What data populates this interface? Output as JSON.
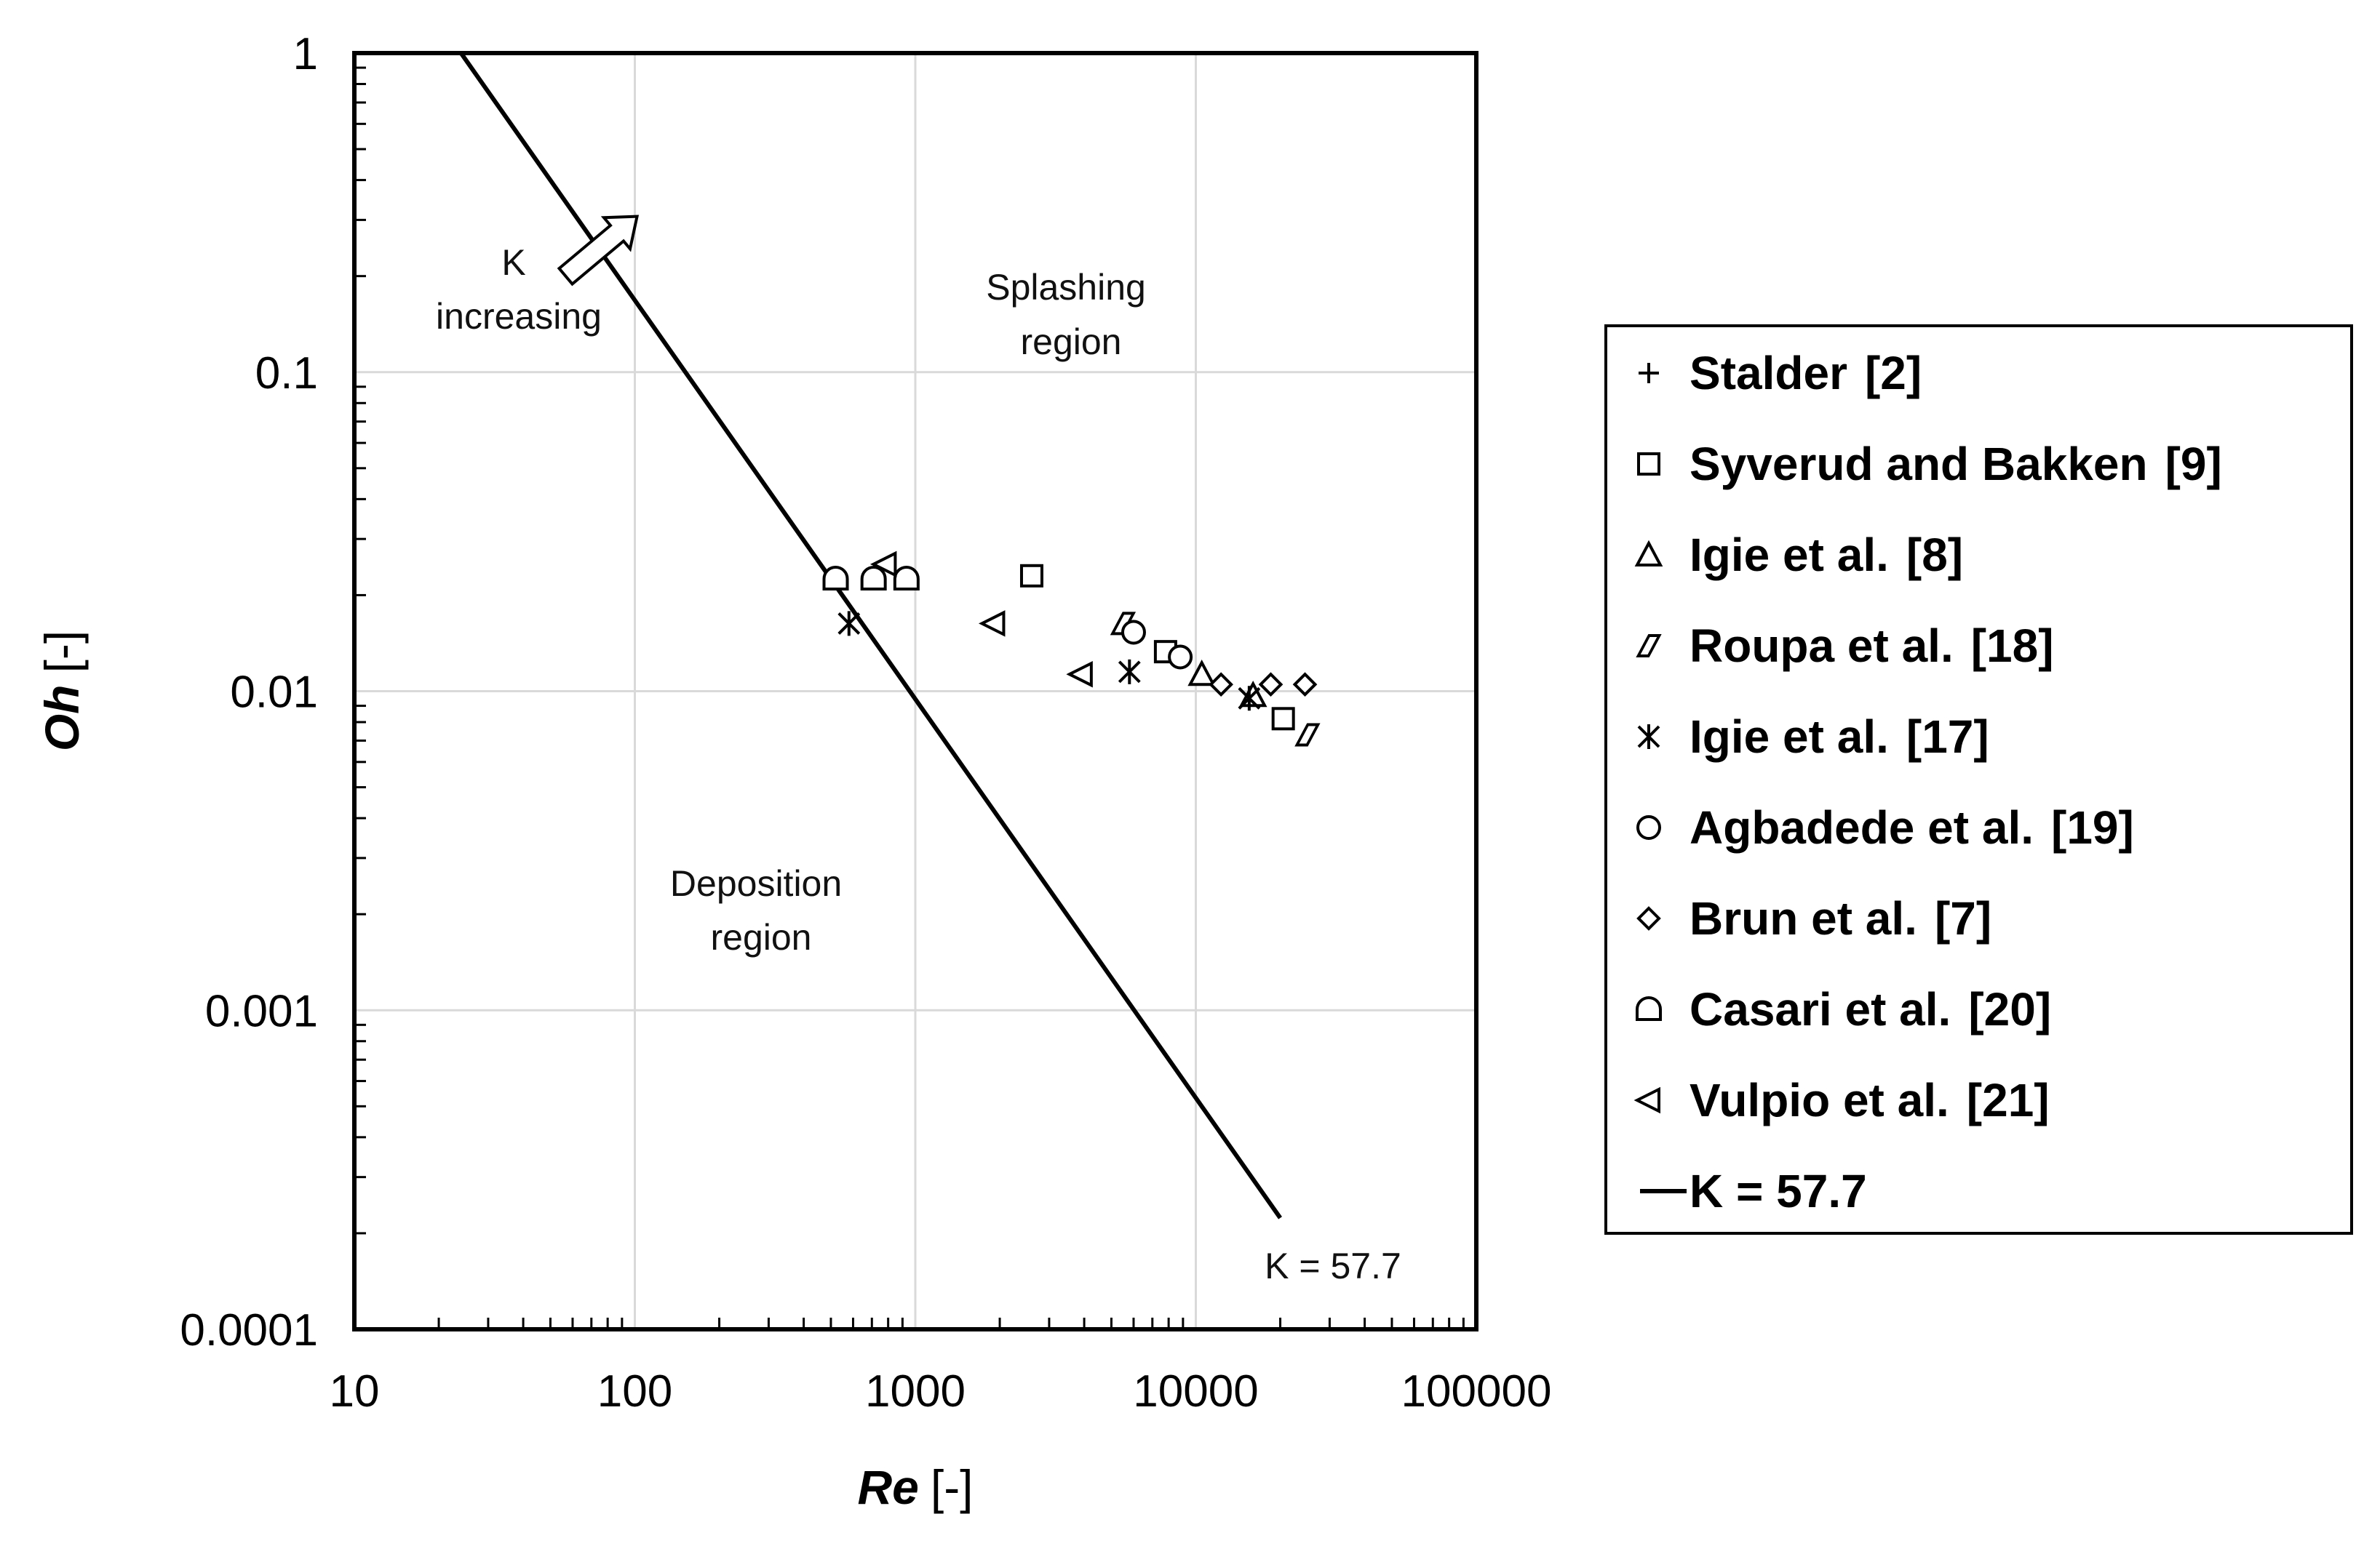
{
  "chart_data": {
    "type": "scatter",
    "title": "",
    "xlabel": {
      "symbol": "Re",
      "unit": "[-]"
    },
    "ylabel": {
      "symbol": "Oh",
      "unit": "[-]"
    },
    "x_scale": "log",
    "y_scale": "log",
    "xlim": [
      10,
      100000
    ],
    "ylim": [
      0.0001,
      1
    ],
    "x_ticks": [
      "10",
      "100",
      "1000",
      "10000",
      "100000"
    ],
    "y_ticks": [
      "0.0001",
      "0.001",
      "0.01",
      "0.1",
      "1"
    ],
    "grid": true,
    "legend_position": "right",
    "annotations": {
      "k_increasing_line1": "K",
      "k_increasing_line2": "increasing",
      "splashing_line1": "Splashing",
      "splashing_line2": "region",
      "deposition_line1": "Deposition",
      "deposition_line2": "region",
      "threshold_label": "K = 57.7"
    },
    "threshold_line": {
      "name": "K = 57.7",
      "K": 57.7,
      "x_range": [
        24,
        20000
      ]
    },
    "series": [
      {
        "name": "Stalder",
        "ref": "[2]",
        "marker": "plus",
        "points": []
      },
      {
        "name": "Syverud and Bakken",
        "ref": "[9]",
        "marker": "square",
        "points": [
          [
            2600,
            0.023
          ],
          [
            7800,
            0.0133
          ],
          [
            20500,
            0.0082
          ]
        ]
      },
      {
        "name": "Igie et al.",
        "ref": "[8]",
        "marker": "triangle",
        "points": [
          [
            10500,
            0.0113
          ],
          [
            16000,
            0.0097
          ]
        ]
      },
      {
        "name": "Roupa et al.",
        "ref": "[18]",
        "marker": "parallelogram",
        "points": [
          [
            5500,
            0.0163
          ],
          [
            25000,
            0.0073
          ]
        ]
      },
      {
        "name": "Igie et al.",
        "ref": "[17]",
        "marker": "asterisk",
        "points": [
          [
            580,
            0.0163
          ],
          [
            5800,
            0.0115
          ],
          [
            15500,
            0.0095
          ]
        ]
      },
      {
        "name": "Agbadede et al.",
        "ref": "[19]",
        "marker": "circle",
        "points": [
          [
            6000,
            0.0153
          ],
          [
            8800,
            0.0128
          ]
        ]
      },
      {
        "name": "Brun et al.",
        "ref": "[7]",
        "marker": "diamond",
        "points": [
          [
            12300,
            0.0105
          ],
          [
            18500,
            0.0105
          ],
          [
            24500,
            0.0105
          ]
        ]
      },
      {
        "name": "Casari et al.",
        "ref": "[20]",
        "marker": "dome",
        "points": [
          [
            520,
            0.0225
          ],
          [
            710,
            0.0225
          ],
          [
            930,
            0.0225
          ]
        ]
      },
      {
        "name": "Vulpio et al.",
        "ref": "[21]",
        "marker": "left-triangle",
        "points": [
          [
            780,
            0.025
          ],
          [
            1900,
            0.0163
          ],
          [
            3900,
            0.0113
          ]
        ]
      }
    ]
  },
  "legend": {
    "items": [
      {
        "name": "Stalder",
        "ref": "[2]",
        "marker": "plus"
      },
      {
        "name": "Syverud and Bakken",
        "ref": "[9]",
        "marker": "square"
      },
      {
        "name": "Igie et al.",
        "ref": "[8]",
        "marker": "triangle"
      },
      {
        "name": "Roupa et al.",
        "ref": "[18]",
        "marker": "parallelogram"
      },
      {
        "name": "Igie et al.",
        "ref": "[17]",
        "marker": "asterisk"
      },
      {
        "name": "Agbadede et al.",
        "ref": "[19]",
        "marker": "circle"
      },
      {
        "name": "Brun et al.",
        "ref": "[7]",
        "marker": "diamond"
      },
      {
        "name": "Casari et al.",
        "ref": "[20]",
        "marker": "dome"
      },
      {
        "name": "Vulpio et al.",
        "ref": "[21]",
        "marker": "left-triangle"
      },
      {
        "name": "K = 57.7",
        "ref": "",
        "marker": "line"
      }
    ]
  },
  "colors": {
    "ink": "#000000",
    "grid": "#d9d9d9",
    "background": "#ffffff"
  }
}
